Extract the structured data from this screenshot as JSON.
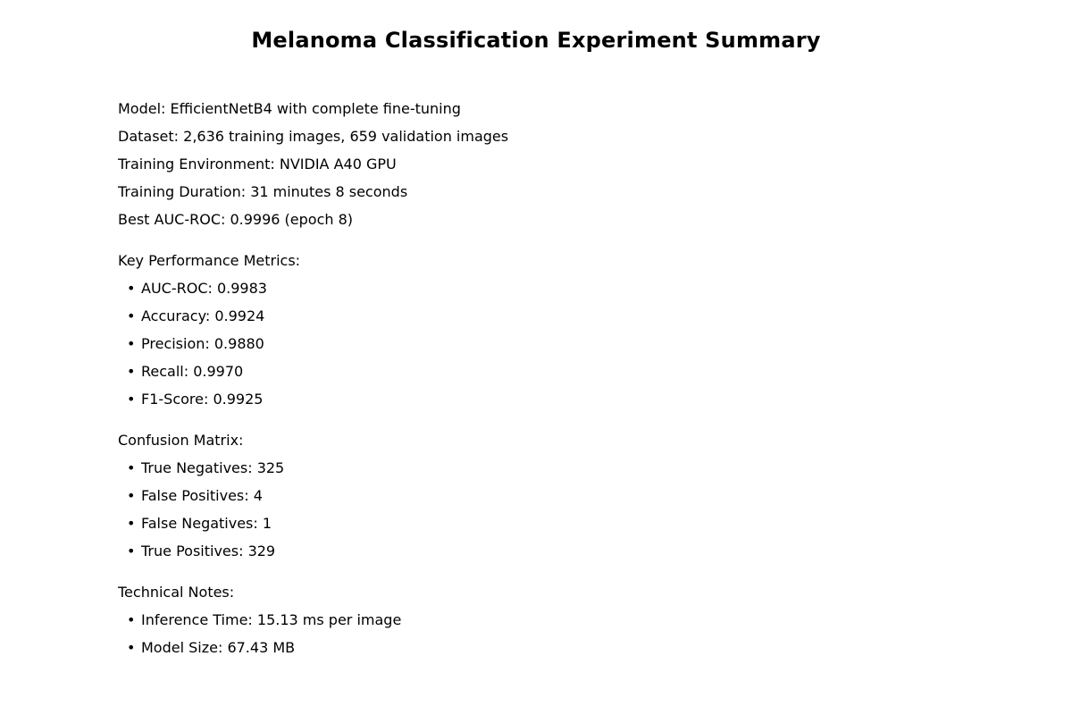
{
  "title": "Melanoma Classification Experiment Summary",
  "overview": [
    "Model: EfficientNetB4 with complete fine-tuning",
    "Dataset: 2,636 training images, 659 validation images",
    "Training Environment: NVIDIA A40 GPU",
    "Training Duration: 31 minutes 8 seconds",
    "Best AUC-ROC: 0.9996 (epoch 8)"
  ],
  "bullet_glyph": "•",
  "metrics": {
    "heading": "Key Performance Metrics:",
    "items": [
      "AUC-ROC: 0.9983",
      "Accuracy: 0.9924",
      "Precision: 0.9880",
      "Recall: 0.9970",
      "F1-Score: 0.9925"
    ]
  },
  "confusion": {
    "heading": "Confusion Matrix:",
    "items": [
      "True Negatives: 325",
      "False Positives: 4",
      "False Negatives: 1",
      "True Positives: 329"
    ]
  },
  "notes": {
    "heading": "Technical Notes:",
    "items": [
      "Inference Time: 15.13 ms per image",
      "Model Size: 67.43 MB"
    ]
  }
}
